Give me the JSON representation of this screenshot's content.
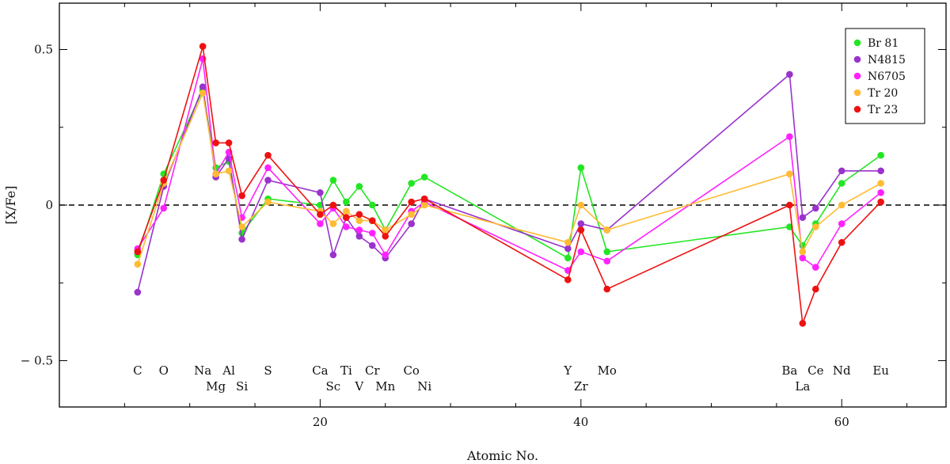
{
  "chart_data": {
    "type": "line",
    "title": "",
    "xlabel": "Atomic No.",
    "ylabel": "[X/Fe]",
    "xlim": [
      0,
      68
    ],
    "ylim": [
      -0.65,
      0.65
    ],
    "x_ticks": [
      20,
      40,
      60
    ],
    "y_ticks": [
      0.5,
      0,
      -0.5
    ],
    "y_tick_labels": [
      "0.5",
      "0",
      "− 0.5"
    ],
    "reference_line": {
      "y": 0,
      "style": "dashed"
    },
    "legend_position": "top-right",
    "element_labels": [
      {
        "name": "C",
        "z": 6,
        "row": 1
      },
      {
        "name": "O",
        "z": 8,
        "row": 1
      },
      {
        "name": "Na",
        "z": 11,
        "row": 1
      },
      {
        "name": "Mg",
        "z": 12,
        "row": 2
      },
      {
        "name": "Al",
        "z": 13,
        "row": 1
      },
      {
        "name": "Si",
        "z": 14,
        "row": 2
      },
      {
        "name": "S",
        "z": 16,
        "row": 1
      },
      {
        "name": "Ca",
        "z": 20,
        "row": 1
      },
      {
        "name": "Sc",
        "z": 21,
        "row": 2
      },
      {
        "name": "Ti",
        "z": 22,
        "row": 1
      },
      {
        "name": "V",
        "z": 23,
        "row": 2
      },
      {
        "name": "Cr",
        "z": 24,
        "row": 1
      },
      {
        "name": "Mn",
        "z": 25,
        "row": 2
      },
      {
        "name": "Co",
        "z": 27,
        "row": 1
      },
      {
        "name": "Ni",
        "z": 28,
        "row": 2
      },
      {
        "name": "Y",
        "z": 39,
        "row": 1
      },
      {
        "name": "Zr",
        "z": 40,
        "row": 2
      },
      {
        "name": "Mo",
        "z": 42,
        "row": 1
      },
      {
        "name": "Ba",
        "z": 56,
        "row": 1
      },
      {
        "name": "La",
        "z": 57,
        "row": 2
      },
      {
        "name": "Ce",
        "z": 58,
        "row": 1
      },
      {
        "name": "Nd",
        "z": 60,
        "row": 1
      },
      {
        "name": "Eu",
        "z": 63,
        "row": 1
      }
    ],
    "series": [
      {
        "name": "Br 81",
        "color": "#22e622",
        "x": [
          6,
          8,
          11,
          12,
          13,
          14,
          16,
          20,
          21,
          22,
          23,
          24,
          25,
          27,
          28,
          39,
          40,
          42,
          56,
          57,
          58,
          60,
          63
        ],
        "y": [
          -0.16,
          0.1,
          0.37,
          0.12,
          0.14,
          -0.09,
          0.02,
          0.0,
          0.08,
          0.01,
          0.06,
          0.0,
          -0.08,
          0.07,
          0.09,
          -0.17,
          0.12,
          -0.15,
          -0.07,
          -0.13,
          -0.06,
          0.07,
          0.16
        ]
      },
      {
        "name": "N4815",
        "color": "#9933cc",
        "x": [
          6,
          8,
          11,
          12,
          13,
          14,
          16,
          20,
          21,
          22,
          23,
          24,
          25,
          27,
          28,
          39,
          40,
          42,
          56,
          57,
          58,
          60,
          63
        ],
        "y": [
          -0.28,
          0.06,
          0.38,
          0.09,
          0.15,
          -0.11,
          0.08,
          0.04,
          -0.16,
          -0.04,
          -0.1,
          -0.13,
          -0.17,
          -0.06,
          0.02,
          -0.14,
          -0.06,
          -0.08,
          0.42,
          -0.04,
          -0.01,
          0.11,
          0.11
        ]
      },
      {
        "name": "N6705",
        "color": "#ff22ff",
        "x": [
          6,
          8,
          11,
          12,
          13,
          14,
          16,
          20,
          21,
          22,
          23,
          24,
          25,
          27,
          28,
          39,
          40,
          42,
          56,
          57,
          58,
          60,
          63
        ],
        "y": [
          -0.14,
          -0.01,
          0.47,
          0.1,
          0.17,
          -0.04,
          0.12,
          -0.06,
          -0.01,
          -0.07,
          -0.08,
          -0.09,
          -0.16,
          -0.02,
          0.01,
          -0.21,
          -0.15,
          -0.18,
          0.22,
          -0.17,
          -0.2,
          -0.06,
          0.04
        ]
      },
      {
        "name": "Tr 20",
        "color": "#ffbb33",
        "x": [
          6,
          8,
          11,
          12,
          13,
          14,
          16,
          20,
          21,
          22,
          23,
          24,
          25,
          27,
          28,
          39,
          40,
          42,
          56,
          57,
          58,
          60,
          63
        ],
        "y": [
          -0.19,
          0.07,
          0.36,
          0.1,
          0.11,
          -0.07,
          0.01,
          -0.02,
          -0.06,
          -0.02,
          -0.05,
          -0.05,
          -0.08,
          -0.03,
          0.0,
          -0.12,
          0.0,
          -0.08,
          0.1,
          -0.15,
          -0.07,
          0.0,
          0.07
        ]
      },
      {
        "name": "Tr 23",
        "color": "#ee1111",
        "x": [
          6,
          8,
          11,
          12,
          13,
          14,
          16,
          20,
          21,
          22,
          23,
          24,
          25,
          27,
          28,
          39,
          40,
          42,
          56,
          57,
          58,
          60,
          63
        ],
        "y": [
          -0.15,
          0.08,
          0.51,
          0.2,
          0.2,
          0.03,
          0.16,
          -0.03,
          0.0,
          -0.04,
          -0.03,
          -0.05,
          -0.1,
          0.01,
          0.02,
          -0.24,
          -0.08,
          -0.27,
          0.0,
          -0.38,
          -0.27,
          -0.12,
          0.01
        ]
      }
    ]
  }
}
